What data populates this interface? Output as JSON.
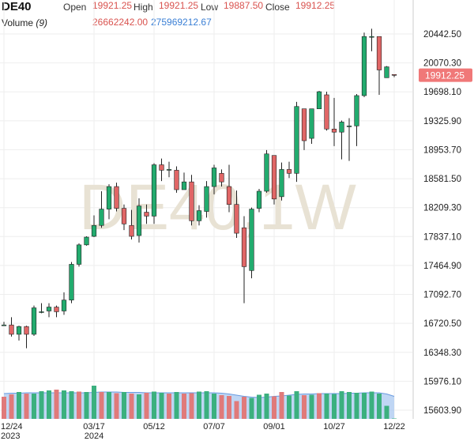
{
  "header": {
    "symbol": "DE40",
    "open_label": "Open",
    "open_value": "19921.25",
    "high_label": "High",
    "high_value": "19921.25",
    "low_label": "Low",
    "low_value": "19887.50",
    "close_label": "Close",
    "close_value": "19912.25",
    "volume_label": "Volume",
    "volume_period": "(9)",
    "volume_value": "26662242.00",
    "volume_ma_value": "275969212.67"
  },
  "colors": {
    "up": "#22ab6e",
    "down": "#e06666",
    "up_vol": "#3bb07f",
    "down_vol": "#e07a7a",
    "volume_area": "#a9c8f0",
    "volume_line": "#6a9be0",
    "price_tag": "#f07878",
    "grid": "#eeeeee"
  },
  "chart_data": {
    "type": "candlestick",
    "watermark": "DE40,1W",
    "last_price": "19912.25",
    "y_ticks": [
      "20442.50",
      "20070.30",
      "19698.10",
      "19325.90",
      "18953.70",
      "18581.50",
      "18209.30",
      "17837.10",
      "17464.90",
      "17092.70",
      "16720.50",
      "16348.30",
      "15976.10",
      "15603.90"
    ],
    "y_values": [
      20442.5,
      20070.3,
      19698.1,
      19325.9,
      18953.7,
      18581.5,
      18209.3,
      17837.1,
      17464.9,
      17092.7,
      16720.5,
      16348.3,
      15976.1,
      15603.9
    ],
    "x_ticks": [
      {
        "label": "12/24",
        "sub": "2023",
        "index": 0
      },
      {
        "label": "03/17",
        "sub": "2024",
        "index": 12
      },
      {
        "label": "05/12",
        "sub": "",
        "index": 20
      },
      {
        "label": "07/07",
        "sub": "",
        "index": 28
      },
      {
        "label": "09/01",
        "sub": "",
        "index": 36
      },
      {
        "label": "10/27",
        "sub": "",
        "index": 44
      },
      {
        "label": "12/22",
        "sub": "",
        "index": 52
      }
    ],
    "ohlc": [
      [
        16700,
        16740,
        16690,
        16700
      ],
      [
        16700,
        16800,
        16550,
        16580
      ],
      [
        16580,
        16690,
        16500,
        16680
      ],
      [
        16680,
        16690,
        16400,
        16580
      ],
      [
        16580,
        16950,
        16560,
        16920
      ],
      [
        16860,
        16980,
        16850,
        16870
      ],
      [
        16880,
        16980,
        16800,
        16930
      ],
      [
        16930,
        16950,
        16800,
        16870
      ],
      [
        16880,
        17120,
        16830,
        17020
      ],
      [
        17020,
        17510,
        16980,
        17480
      ],
      [
        17480,
        17750,
        17450,
        17730
      ],
      [
        17730,
        17840,
        17720,
        17830
      ],
      [
        17840,
        18110,
        17830,
        17980
      ],
      [
        17980,
        18420,
        17950,
        18190
      ],
      [
        18190,
        18510,
        18060,
        18480
      ],
      [
        18480,
        18530,
        18160,
        18200
      ],
      [
        18200,
        18250,
        17920,
        18000
      ],
      [
        17980,
        18180,
        17800,
        17840
      ],
      [
        17850,
        18330,
        17760,
        18230
      ],
      [
        18150,
        18250,
        18000,
        18100
      ],
      [
        18100,
        18780,
        18000,
        18760
      ],
      [
        18760,
        18840,
        18550,
        18690
      ],
      [
        18690,
        18800,
        18600,
        18700
      ],
      [
        18690,
        18740,
        18400,
        18440
      ],
      [
        18440,
        18660,
        18460,
        18540
      ],
      [
        18540,
        18630,
        17980,
        18040
      ],
      [
        18040,
        18240,
        17980,
        18170
      ],
      [
        18160,
        18550,
        18080,
        18480
      ],
      [
        18480,
        18760,
        18380,
        18720
      ],
      [
        18650,
        18700,
        18480,
        18540
      ],
      [
        18480,
        18760,
        18150,
        18250
      ],
      [
        18250,
        18430,
        17820,
        17880
      ],
      [
        17950,
        18100,
        16980,
        17450
      ],
      [
        17400,
        18210,
        17300,
        18190
      ],
      [
        18200,
        18450,
        18150,
        18420
      ],
      [
        18420,
        18950,
        18400,
        18900
      ],
      [
        18880,
        18880,
        18250,
        18320
      ],
      [
        18350,
        18790,
        18300,
        18700
      ],
      [
        18700,
        18800,
        18590,
        18650
      ],
      [
        18650,
        19570,
        18540,
        19510
      ],
      [
        19480,
        19480,
        18950,
        19070
      ],
      [
        19100,
        19470,
        19030,
        19480
      ],
      [
        19480,
        19710,
        19480,
        19700
      ],
      [
        19660,
        19700,
        19200,
        19220
      ],
      [
        19220,
        19620,
        19000,
        19180
      ],
      [
        19180,
        19330,
        18830,
        19310
      ],
      [
        19260,
        19360,
        18810,
        19260
      ],
      [
        19260,
        19670,
        19000,
        19650
      ],
      [
        19650,
        20460,
        19630,
        20410
      ],
      [
        20410,
        20510,
        20220,
        20410
      ],
      [
        20410,
        20410,
        19660,
        19980
      ],
      [
        19880,
        20030,
        19880,
        20020
      ],
      [
        19921.25,
        19921.25,
        19887.5,
        19912.25
      ]
    ],
    "volume": [
      [
        56,
        1
      ],
      [
        62,
        1
      ],
      [
        68,
        0
      ],
      [
        64,
        1
      ],
      [
        64,
        0
      ],
      [
        70,
        0
      ],
      [
        72,
        0
      ],
      [
        74,
        1
      ],
      [
        72,
        0
      ],
      [
        70,
        0
      ],
      [
        69,
        1
      ],
      [
        68,
        0
      ],
      [
        84,
        0
      ],
      [
        68,
        1
      ],
      [
        68,
        0
      ],
      [
        65,
        1
      ],
      [
        68,
        0
      ],
      [
        64,
        1
      ],
      [
        62,
        0
      ],
      [
        66,
        1
      ],
      [
        69,
        0
      ],
      [
        66,
        0
      ],
      [
        64,
        1
      ],
      [
        68,
        0
      ],
      [
        64,
        1
      ],
      [
        65,
        1
      ],
      [
        69,
        0
      ],
      [
        70,
        0
      ],
      [
        64,
        0
      ],
      [
        60,
        1
      ],
      [
        58,
        1
      ],
      [
        45,
        1
      ],
      [
        56,
        1
      ],
      [
        53,
        0
      ],
      [
        61,
        0
      ],
      [
        64,
        0
      ],
      [
        57,
        1
      ],
      [
        68,
        1
      ],
      [
        59,
        0
      ],
      [
        70,
        0
      ],
      [
        60,
        1
      ],
      [
        61,
        0
      ],
      [
        65,
        1
      ],
      [
        64,
        0
      ],
      [
        63,
        0
      ],
      [
        70,
        0
      ],
      [
        68,
        0
      ],
      [
        66,
        0
      ],
      [
        66,
        0
      ],
      [
        69,
        0
      ],
      [
        64,
        0
      ],
      [
        33,
        0
      ],
      [
        1,
        0
      ]
    ],
    "volume_ma": [
      64,
      65,
      65,
      66,
      66,
      66,
      66,
      66,
      66,
      66,
      66,
      66,
      67,
      68,
      68,
      68,
      67,
      67,
      67,
      66,
      66,
      66,
      66,
      66,
      66,
      66,
      66,
      66,
      66,
      65,
      63,
      60,
      57,
      55,
      54,
      55,
      57,
      58,
      60,
      62,
      63,
      63,
      64,
      64,
      64,
      64,
      65,
      65,
      66,
      66,
      66,
      63,
      57
    ]
  }
}
